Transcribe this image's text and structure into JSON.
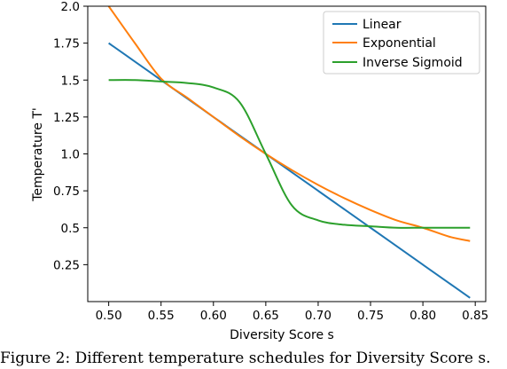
{
  "chart_data": {
    "type": "line",
    "title": "",
    "xlabel": "Diversity Score s",
    "ylabel": "Temperature T'",
    "xlim": [
      0.48,
      0.86
    ],
    "ylim": [
      0.0,
      2.0
    ],
    "x_ticks": [
      "0.50",
      "0.55",
      "0.60",
      "0.65",
      "0.70",
      "0.75",
      "0.80",
      "0.85"
    ],
    "y_ticks": [
      "0.25",
      "0.5",
      "0.75",
      "1.0",
      "1.25",
      "1.5",
      "1.75",
      "2.0"
    ],
    "grid": false,
    "legend_position": "top-right",
    "x": [
      0.5,
      0.525,
      0.55,
      0.575,
      0.6,
      0.625,
      0.65,
      0.675,
      0.7,
      0.725,
      0.75,
      0.775,
      0.8,
      0.825,
      0.845
    ],
    "series": [
      {
        "name": "Linear",
        "color": "#1f77b4",
        "values": [
          1.75,
          1.625,
          1.5,
          1.375,
          1.25,
          1.125,
          1.0,
          0.875,
          0.75,
          0.625,
          0.5,
          0.375,
          0.25,
          0.125,
          0.025
        ]
      },
      {
        "name": "Exponential",
        "color": "#ff7f0e",
        "values": [
          2.0,
          1.75,
          1.51,
          1.38,
          1.25,
          1.12,
          1.0,
          0.89,
          0.79,
          0.7,
          0.62,
          0.55,
          0.5,
          0.44,
          0.41
        ]
      },
      {
        "name": "Inverse Sigmoid",
        "color": "#2ca02c",
        "values": [
          1.5,
          1.5,
          1.49,
          1.48,
          1.45,
          1.35,
          1.0,
          0.65,
          0.55,
          0.52,
          0.51,
          0.5,
          0.5,
          0.5,
          0.5
        ]
      }
    ]
  },
  "caption": "Figure 2: Different temperature schedules for Diversity Score s."
}
